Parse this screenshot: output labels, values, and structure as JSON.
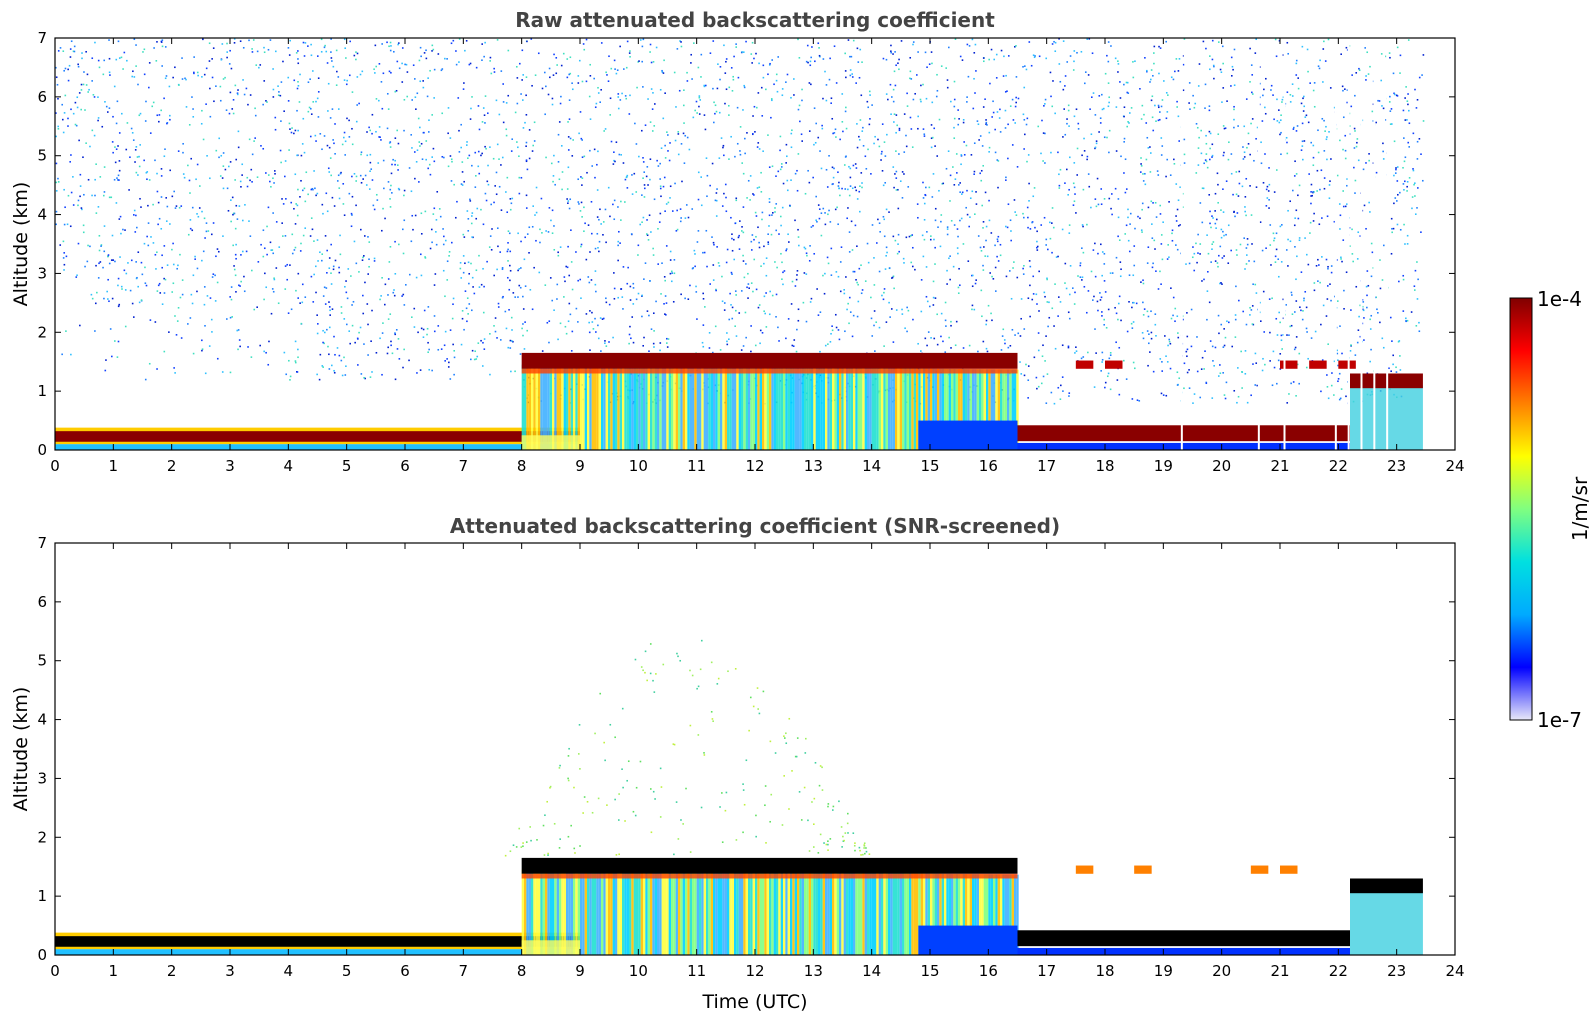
{
  "chart_data": [
    {
      "type": "heatmap",
      "title": "Raw attenuated backscattering coefficient",
      "xlabel": "",
      "ylabel": "Altitude (km)",
      "xlim": [
        0,
        24
      ],
      "ylim": [
        0,
        7
      ],
      "x_ticks": [
        "0",
        "1",
        "2",
        "3",
        "4",
        "5",
        "6",
        "7",
        "8",
        "9",
        "10",
        "11",
        "12",
        "13",
        "14",
        "15",
        "16",
        "17",
        "18",
        "19",
        "20",
        "21",
        "22",
        "23",
        "24"
      ],
      "y_ticks": [
        "0",
        "1",
        "2",
        "3",
        "4",
        "5",
        "6",
        "7"
      ],
      "data_end_time": 23.45,
      "layers": [
        {
          "name": "low-cloud",
          "t_start": 0,
          "t_end": 9.0,
          "base": 0.1,
          "top": 0.35,
          "intensity": "high"
        },
        {
          "name": "aerosol-layer",
          "t_start": 8.0,
          "t_end": 16.5,
          "base": 0.0,
          "top": 1.6,
          "intensity": "medium"
        },
        {
          "name": "cloud-top-layer",
          "t_start": 8.0,
          "t_end": 16.5,
          "base": 1.4,
          "top": 1.65,
          "intensity": "high"
        },
        {
          "name": "low-cloud-2",
          "t_start": 16.5,
          "t_end": 22.2,
          "base": 0.15,
          "top": 0.45,
          "intensity": "high"
        },
        {
          "name": "broken-cloud",
          "t_start": 16.5,
          "t_end": 22.2,
          "base": 1.35,
          "top": 1.55,
          "intensity": "medium"
        },
        {
          "name": "late-cloud",
          "t_start": 22.2,
          "t_end": 23.45,
          "base": 1.05,
          "top": 1.3,
          "intensity": "high"
        }
      ],
      "colors": {
        "cloud": "#800000",
        "aerosol": "#00c8ff",
        "noise": "#2060ff"
      }
    },
    {
      "type": "heatmap",
      "title": "Attenuated backscattering coefficient (SNR-screened)",
      "xlabel": "Time (UTC)",
      "ylabel": "Altitude (km)",
      "xlim": [
        0,
        24
      ],
      "ylim": [
        0,
        7
      ],
      "x_ticks": [
        "0",
        "1",
        "2",
        "3",
        "4",
        "5",
        "6",
        "7",
        "8",
        "9",
        "10",
        "11",
        "12",
        "13",
        "14",
        "15",
        "16",
        "17",
        "18",
        "19",
        "20",
        "21",
        "22",
        "23",
        "24"
      ],
      "y_ticks": [
        "0",
        "1",
        "2",
        "3",
        "4",
        "5",
        "6",
        "7"
      ],
      "data_end_time": 23.45,
      "layers": [
        {
          "name": "low-cloud",
          "t_start": 0,
          "t_end": 9.0,
          "base": 0.1,
          "top": 0.35,
          "intensity": "saturated"
        },
        {
          "name": "aerosol-layer",
          "t_start": 8.0,
          "t_end": 16.5,
          "base": 0.0,
          "top": 1.6,
          "intensity": "medium"
        },
        {
          "name": "cloud-top-layer",
          "t_start": 8.0,
          "t_end": 16.5,
          "base": 1.4,
          "top": 1.65,
          "intensity": "saturated"
        },
        {
          "name": "low-cloud-2",
          "t_start": 16.5,
          "t_end": 22.2,
          "base": 0.15,
          "top": 0.45,
          "intensity": "saturated"
        },
        {
          "name": "late-cloud",
          "t_start": 22.2,
          "t_end": 23.45,
          "base": 1.05,
          "top": 1.3,
          "intensity": "saturated"
        }
      ],
      "colors": {
        "saturated": "#000000",
        "aerosol": "#00c8ff"
      }
    }
  ],
  "colorbar": {
    "label": "1/m/sr",
    "max_label": "1e-4",
    "min_label": "1e-7",
    "scale": "log",
    "stops": [
      "#e8e8f8",
      "#0000ff",
      "#00aaff",
      "#00e0e0",
      "#80ff80",
      "#ffff00",
      "#ff8000",
      "#ff0000",
      "#800000"
    ]
  }
}
